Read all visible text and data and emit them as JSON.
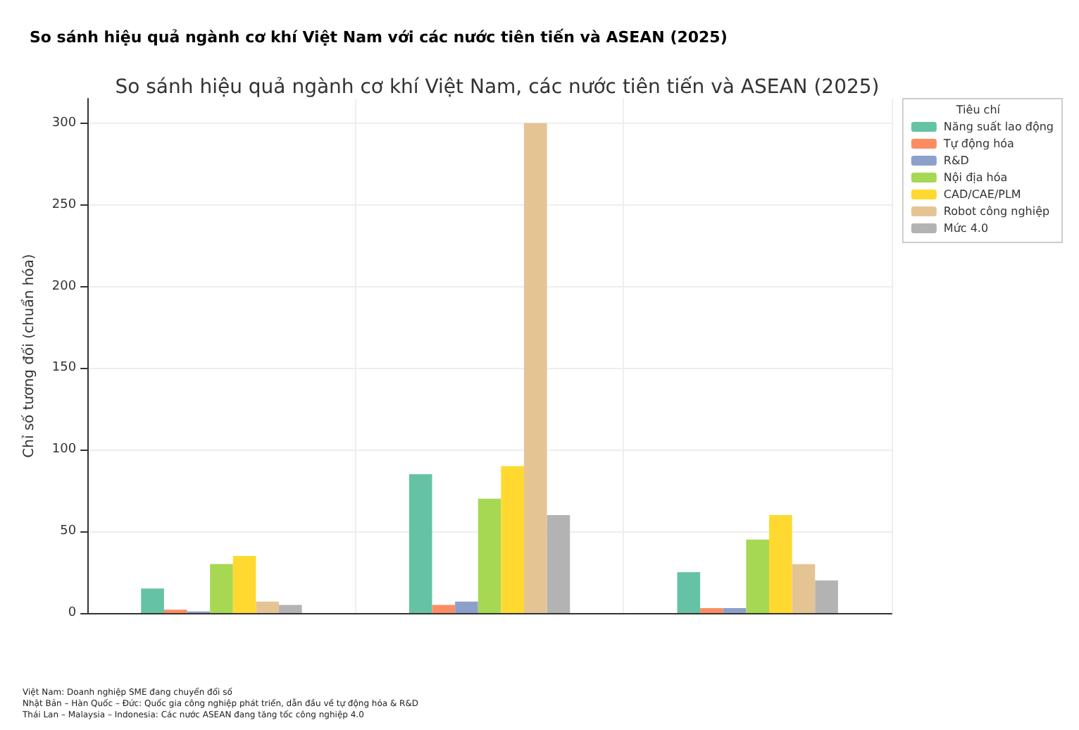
{
  "chart_data": {
    "type": "bar",
    "title": "So sánh hiệu quả ngành cơ khí Việt Nam với các nước tiên tiến và ASEAN (2025)",
    "subtitle": "So sánh hiệu quả ngành cơ khí Việt Nam, các nước tiên tiến và ASEAN (2025)",
    "ylabel": "Chỉ số tương đối (chuẩn hóa)",
    "legend_title": "Tiêu chí",
    "categories": [
      null,
      null,
      null
    ],
    "series": [
      {
        "name": "Năng suất lao động",
        "color": "#66c2a5",
        "values": [
          15,
          85,
          25
        ]
      },
      {
        "name": "Tự động hóa",
        "color": "#fc8d62",
        "values": [
          2,
          5,
          3
        ]
      },
      {
        "name": "R&D",
        "color": "#8da0cb",
        "values": [
          1,
          7,
          3
        ]
      },
      {
        "name": "Nội địa hóa",
        "color": "#a6d854",
        "values": [
          30,
          70,
          45
        ]
      },
      {
        "name": "CAD/CAE/PLM",
        "color": "#ffd92f",
        "values": [
          35,
          90,
          60
        ]
      },
      {
        "name": "Robot công nghiệp",
        "color": "#e5c494",
        "values": [
          7,
          300,
          30
        ]
      },
      {
        "name": "Mức 4.0",
        "color": "#b3b3b3",
        "values": [
          5,
          60,
          20
        ]
      }
    ],
    "ylim": [
      0,
      315
    ],
    "yticks": [
      0,
      50,
      100,
      150,
      200,
      250,
      300
    ],
    "grid": true,
    "legend": "right",
    "tick_labels": "y",
    "annotations": [
      "Việt Nam: Doanh nghiệp SME đang chuyển đổi số",
      "Nhật Bản – Hàn Quốc – Đức: Quốc gia công nghiệp phát triển, dẫn đầu về tự động hóa & R&D",
      "Thái Lan – Malaysia – Indonesia: Các nước ASEAN đang tăng tốc công nghiệp 4.0"
    ]
  }
}
